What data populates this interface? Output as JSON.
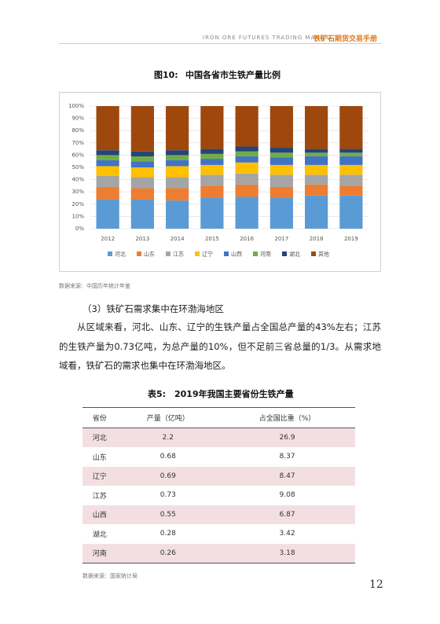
{
  "header": {
    "subtitle": "IRON ORE FUTURES TRADING MANUAL",
    "title": "铁矿石期货交易手册"
  },
  "figure": {
    "label": "图10:",
    "title": "中国各省市生铁产量比例",
    "source": "数据来源：中国历年统计年鉴"
  },
  "chart_data": {
    "type": "stacked_bar",
    "categories": [
      "2012",
      "2013",
      "2014",
      "2015",
      "2016",
      "2017",
      "2018",
      "2019"
    ],
    "series": [
      {
        "name": "河北",
        "color": "#5b9bd5",
        "values": [
          24,
          24,
          23,
          25,
          26,
          25,
          27,
          27
        ]
      },
      {
        "name": "山东",
        "color": "#ed7d31",
        "values": [
          10,
          9,
          10,
          10,
          10,
          9,
          9,
          8
        ]
      },
      {
        "name": "江苏",
        "color": "#a5a5a5",
        "values": [
          9,
          9,
          9,
          9,
          9,
          10,
          8,
          9
        ]
      },
      {
        "name": "辽宁",
        "color": "#ffc000",
        "values": [
          8,
          8,
          9,
          8,
          9,
          8,
          8,
          8
        ]
      },
      {
        "name": "山西",
        "color": "#4472c4",
        "values": [
          5,
          5,
          5,
          5,
          5,
          6,
          7,
          7
        ]
      },
      {
        "name": "河南",
        "color": "#70ad47",
        "values": [
          4,
          4,
          4,
          4,
          4,
          4,
          3,
          3
        ]
      },
      {
        "name": "湖北",
        "color": "#264478",
        "values": [
          4,
          4,
          4,
          4,
          4,
          4,
          3,
          3
        ]
      },
      {
        "name": "其他",
        "color": "#9e480e",
        "values": [
          36,
          37,
          36,
          35,
          33,
          34,
          35,
          35
        ]
      }
    ],
    "ylim": [
      0,
      100
    ],
    "yticks": [
      {
        "value": 0,
        "label": "0%"
      },
      {
        "value": 10,
        "label": "10%"
      },
      {
        "value": 20,
        "label": "20%"
      },
      {
        "value": 30,
        "label": "30%"
      },
      {
        "value": 40,
        "label": "40%"
      },
      {
        "value": 50,
        "label": "50%"
      },
      {
        "value": 60,
        "label": "60%"
      },
      {
        "value": 70,
        "label": "70%"
      },
      {
        "value": 80,
        "label": "80%"
      },
      {
        "value": 90,
        "label": "90%"
      },
      {
        "value": 100,
        "label": "100%"
      }
    ],
    "grid": true,
    "legend": "bottom"
  },
  "section": {
    "heading": "（3）铁矿石需求集中在环渤海地区",
    "paragraph": "从区域来看，河北、山东、辽宁的生铁产量占全国总产量的43%左右；江苏的生铁产量为0.73亿吨，为总产量的10%，但不足前三省总量的1/3。从需求地域看，铁矿石的需求也集中在环渤海地区。"
  },
  "table": {
    "label": "表5:",
    "title": "2019年我国主要省份生铁产量",
    "headers": [
      "省份",
      "产量（亿吨）",
      "占全国比重（%）"
    ],
    "rows": [
      [
        "河北",
        2.2,
        26.9
      ],
      [
        "山东",
        0.68,
        8.37
      ],
      [
        "辽宁",
        0.69,
        8.47
      ],
      [
        "江苏",
        0.73,
        9.08
      ],
      [
        "山西",
        0.55,
        6.87
      ],
      [
        "湖北",
        0.28,
        3.42
      ],
      [
        "河南",
        0.26,
        3.18
      ]
    ],
    "source": "数据来源：国家统计局"
  },
  "page_number": "12"
}
